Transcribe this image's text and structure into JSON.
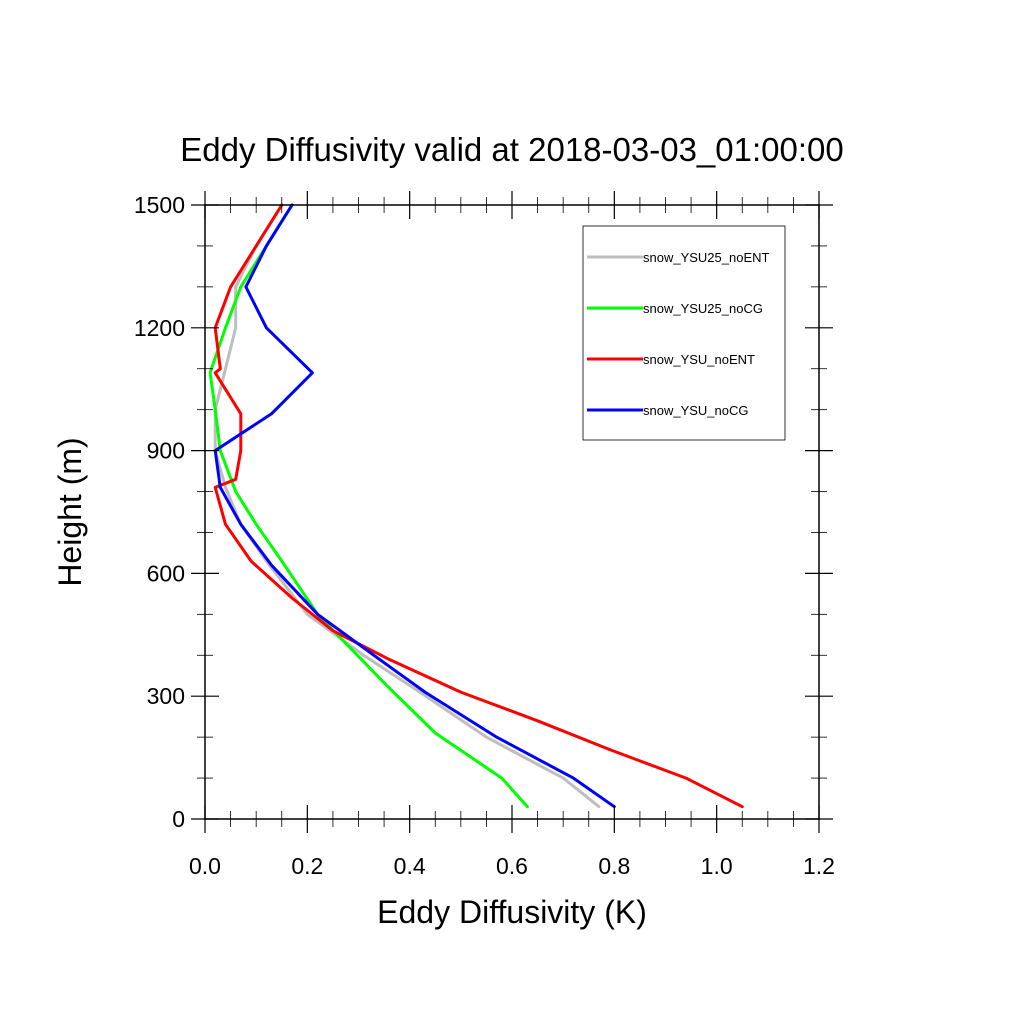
{
  "chart_data": {
    "type": "line",
    "title": "Eddy Diffusivity valid at 2018-03-03_01:00:00",
    "xlabel": "Eddy Diffusivity (K)",
    "ylabel": "Height (m)",
    "xlim": [
      0,
      1.2
    ],
    "ylim": [
      0,
      1500
    ],
    "x_ticks": [
      "0.0",
      "0.2",
      "0.4",
      "0.6",
      "0.8",
      "1.0",
      "1.2"
    ],
    "y_ticks": [
      "0",
      "300",
      "600",
      "900",
      "1200",
      "1500"
    ],
    "grid": false,
    "legend_position": "top-right",
    "series": [
      {
        "name": "snow_YSU25_noENT",
        "color": "#bebebe",
        "x": [
          0.77,
          0.7,
          0.55,
          0.42,
          0.31,
          0.2,
          0.12,
          0.07,
          0.04,
          0.02,
          0.02,
          0.04,
          0.06,
          0.06,
          0.1,
          0.15
        ],
        "y": [
          30,
          100,
          200,
          310,
          400,
          500,
          630,
          720,
          810,
          900,
          1000,
          1100,
          1200,
          1300,
          1400,
          1500
        ]
      },
      {
        "name": "snow_YSU25_noCG",
        "color": "#00ff00",
        "x": [
          0.63,
          0.58,
          0.45,
          0.36,
          0.29,
          0.22,
          0.15,
          0.1,
          0.06,
          0.03,
          0.02,
          0.01,
          0.04,
          0.07,
          0.12,
          0.17
        ],
        "y": [
          30,
          100,
          210,
          320,
          410,
          500,
          630,
          720,
          800,
          900,
          1000,
          1090,
          1200,
          1300,
          1400,
          1500
        ]
      },
      {
        "name": "snow_YSU_noENT",
        "color": "#ff0000",
        "x": [
          1.05,
          0.94,
          0.79,
          0.65,
          0.5,
          0.36,
          0.25,
          0.17,
          0.09,
          0.04,
          0.02,
          0.06,
          0.07,
          0.07,
          0.02,
          0.03,
          0.02,
          0.05,
          0.1,
          0.15
        ],
        "y": [
          30,
          100,
          170,
          240,
          310,
          390,
          460,
          540,
          630,
          720,
          810,
          830,
          900,
          990,
          1090,
          1100,
          1200,
          1300,
          1400,
          1500
        ]
      },
      {
        "name": "snow_YSU_noCG",
        "color": "#0000ff",
        "x": [
          0.8,
          0.72,
          0.57,
          0.43,
          0.33,
          0.22,
          0.13,
          0.07,
          0.03,
          0.02,
          0.13,
          0.21,
          0.12,
          0.08,
          0.12,
          0.17
        ],
        "y": [
          30,
          100,
          200,
          310,
          400,
          500,
          620,
          720,
          810,
          900,
          990,
          1090,
          1200,
          1300,
          1400,
          1500
        ]
      }
    ]
  }
}
